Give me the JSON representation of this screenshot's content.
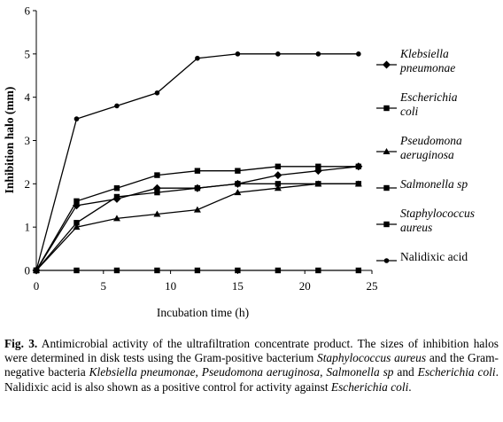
{
  "chart_data": {
    "type": "line",
    "xlabel": "Incubation time (h)",
    "ylabel": "Inhibition halo  (mm)",
    "xlim": [
      0,
      25
    ],
    "ylim": [
      0,
      6
    ],
    "xticks": [
      "0",
      "5",
      "10",
      "15",
      "20",
      "25"
    ],
    "yticks": [
      "0",
      "1",
      "2",
      "3",
      "4",
      "5",
      "6"
    ],
    "grid": false,
    "legend_position": "right",
    "x": [
      0,
      3,
      6,
      9,
      12,
      15,
      18,
      21,
      24
    ],
    "series": [
      {
        "name_lines": [
          "Klebsiella",
          "pneumonae"
        ],
        "italic": true,
        "marker": "diamond",
        "values": [
          0,
          1.5,
          1.65,
          1.9,
          1.9,
          2.0,
          2.2,
          2.3,
          2.4
        ]
      },
      {
        "name_lines": [
          "Escherichia",
          "coli"
        ],
        "italic": true,
        "marker": "square",
        "values": [
          0,
          0,
          0,
          0,
          0,
          0,
          0,
          0,
          0
        ]
      },
      {
        "name_lines": [
          "Pseudomona",
          "aeruginosa"
        ],
        "italic": true,
        "marker": "triangle",
        "values": [
          0,
          1.0,
          1.2,
          1.3,
          1.4,
          1.8,
          1.9,
          2.0,
          2.0
        ]
      },
      {
        "name_lines": [
          "Salmonella sp"
        ],
        "italic": true,
        "marker": "square",
        "values": [
          0,
          1.1,
          1.7,
          1.8,
          1.9,
          2.0,
          2.0,
          2.0,
          2.0
        ]
      },
      {
        "name_lines": [
          "Staphylococcus",
          "aureus"
        ],
        "italic": true,
        "marker": "square",
        "values": [
          0,
          1.6,
          1.9,
          2.2,
          2.3,
          2.3,
          2.4,
          2.4,
          2.4
        ]
      },
      {
        "name_lines": [
          "Nalidixic acid"
        ],
        "italic": false,
        "marker": "circle",
        "values": [
          0,
          3.5,
          3.8,
          4.1,
          4.9,
          5.0,
          5.0,
          5.0,
          5.0
        ]
      }
    ]
  },
  "caption": {
    "label": "Fig. 3.",
    "t1": " Antimicrobial activity of the ultrafiltration concentrate product. The sizes of inhibition halos were determined in disk tests using the Gram-positive bacterium ",
    "i1": "Staphylococcus aureus",
    "t2": " and the Gram-negative bacteria ",
    "i2": "Klebsiella pneumonae",
    "t3": ", ",
    "i3": "Pseudomona aeruginosa",
    "t4": ", ",
    "i4": "Salmonella sp",
    "t5": " and ",
    "i5": "Escherichia coli",
    "t6": ". Nalidixic acid is also shown as a positive control for activity against ",
    "i6": "Escherichia coli",
    "t7": "."
  }
}
